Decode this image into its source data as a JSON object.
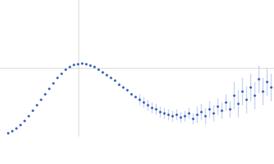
{
  "chart_data": {
    "type": "scatter",
    "color": "#3a5fb8",
    "error_color": "#b8c9e8",
    "xlim": [
      0,
      1
    ],
    "ylim": [
      0,
      1
    ],
    "x": [
      0.03,
      0.045,
      0.06,
      0.075,
      0.09,
      0.105,
      0.12,
      0.135,
      0.15,
      0.165,
      0.18,
      0.195,
      0.21,
      0.225,
      0.24,
      0.255,
      0.27,
      0.285,
      0.3,
      0.315,
      0.33,
      0.345,
      0.36,
      0.375,
      0.39,
      0.405,
      0.42,
      0.435,
      0.45,
      0.465,
      0.48,
      0.495,
      0.51,
      0.525,
      0.54,
      0.555,
      0.57,
      0.585,
      0.6,
      0.615,
      0.63,
      0.645,
      0.66,
      0.675,
      0.69,
      0.705,
      0.72,
      0.735,
      0.75,
      0.765,
      0.78,
      0.795,
      0.81,
      0.825,
      0.84,
      0.855,
      0.87,
      0.885,
      0.9,
      0.915,
      0.93,
      0.945,
      0.96,
      0.975,
      0.99
    ],
    "values": [
      0.025,
      0.04,
      0.06,
      0.085,
      0.115,
      0.15,
      0.19,
      0.23,
      0.27,
      0.31,
      0.35,
      0.39,
      0.43,
      0.46,
      0.49,
      0.51,
      0.525,
      0.53,
      0.535,
      0.53,
      0.52,
      0.51,
      0.49,
      0.47,
      0.45,
      0.43,
      0.41,
      0.38,
      0.36,
      0.34,
      0.31,
      0.29,
      0.27,
      0.25,
      0.23,
      0.21,
      0.2,
      0.18,
      0.17,
      0.16,
      0.15,
      0.16,
      0.14,
      0.15,
      0.17,
      0.13,
      0.16,
      0.18,
      0.15,
      0.2,
      0.17,
      0.22,
      0.19,
      0.25,
      0.2,
      0.3,
      0.24,
      0.33,
      0.27,
      0.36,
      0.3,
      0.42,
      0.33,
      0.4,
      0.36
    ],
    "errors": [
      0.005,
      0.005,
      0.005,
      0.005,
      0.005,
      0.005,
      0.005,
      0.005,
      0.005,
      0.005,
      0.005,
      0.005,
      0.005,
      0.005,
      0.005,
      0.005,
      0.005,
      0.005,
      0.005,
      0.01,
      0.01,
      0.01,
      0.01,
      0.01,
      0.01,
      0.01,
      0.01,
      0.01,
      0.01,
      0.01,
      0.01,
      0.01,
      0.04,
      0.04,
      0.04,
      0.04,
      0.04,
      0.04,
      0.04,
      0.04,
      0.04,
      0.04,
      0.04,
      0.04,
      0.04,
      0.04,
      0.06,
      0.06,
      0.06,
      0.06,
      0.06,
      0.06,
      0.06,
      0.06,
      0.06,
      0.1,
      0.1,
      0.1,
      0.1,
      0.1,
      0.1,
      0.1,
      0.1,
      0.1,
      0.1
    ]
  }
}
